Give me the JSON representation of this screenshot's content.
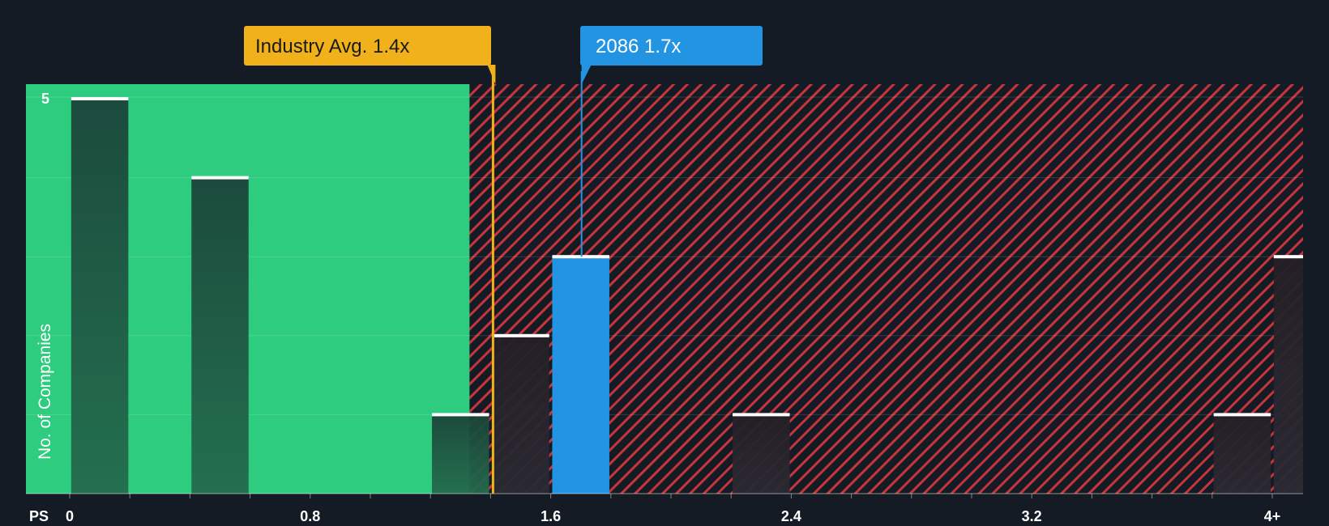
{
  "chart_data": {
    "type": "bar",
    "title": "",
    "xlabel": "PS",
    "ylabel": "No. of Companies",
    "xlim": [
      0,
      4.2
    ],
    "ylim": [
      0,
      5.2
    ],
    "x_ticks": [
      {
        "value": 0,
        "label": "0"
      },
      {
        "value": 0.8,
        "label": "0.8"
      },
      {
        "value": 1.6,
        "label": "1.6"
      },
      {
        "value": 2.4,
        "label": "2.4"
      },
      {
        "value": 3.2,
        "label": "3.2"
      },
      {
        "value": 4.0,
        "label": "4+"
      }
    ],
    "y_ticks": [
      {
        "value": 5,
        "label": "5"
      }
    ],
    "gridlines": [
      1,
      2,
      3,
      4,
      5
    ],
    "bar_width": 0.19,
    "bars": [
      {
        "x": 0.1,
        "value": 5,
        "highlight": false
      },
      {
        "x": 0.5,
        "value": 4,
        "highlight": false
      },
      {
        "x": 1.3,
        "value": 1,
        "highlight": false
      },
      {
        "x": 1.5,
        "value": 2,
        "highlight": false
      },
      {
        "x": 1.7,
        "value": 3,
        "highlight": true
      },
      {
        "x": 2.3,
        "value": 1,
        "highlight": false
      },
      {
        "x": 3.9,
        "value": 1,
        "highlight": false
      },
      {
        "x": 4.1,
        "value": 3,
        "highlight": false
      }
    ],
    "fair_zone": {
      "from": 0,
      "to": 1.33
    },
    "industry_avg": {
      "value": 1.4,
      "label": "Industry Avg. 1.4x"
    },
    "company": {
      "value": 1.7,
      "label": "2086 1.7x"
    },
    "colors": {
      "background": "#151b24",
      "green_zone": "#2ecc7f",
      "red_zone": "#e0353d",
      "bar_dark": "#1d4a3e",
      "bar_dark_red": "#2b2530",
      "bar_highlight": "#2394e2",
      "industry_avg": "#f0b11a",
      "cap": "#ffffff",
      "axis_text": "#ffffff"
    }
  }
}
